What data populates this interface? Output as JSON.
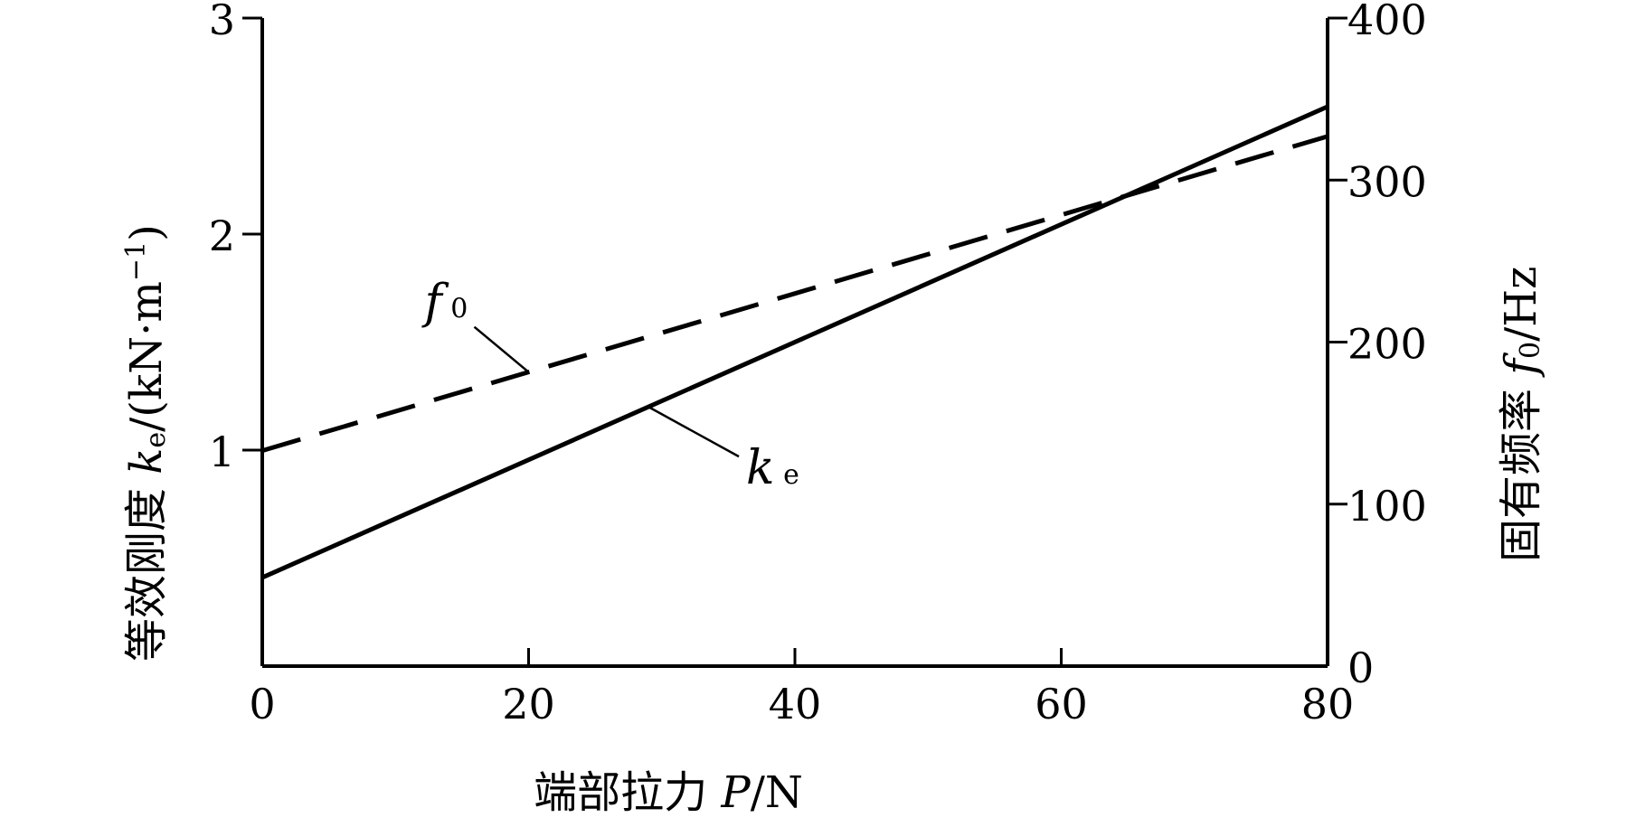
{
  "chart_data": {
    "type": "line",
    "x": [
      0,
      80
    ],
    "xlim": [
      0,
      80
    ],
    "ylim_left": [
      0,
      3
    ],
    "ylim_right": [
      0,
      400
    ],
    "x_ticks": [
      "0",
      "20",
      "40",
      "60",
      "80"
    ],
    "y_left_ticks": [
      "1",
      "2",
      "3"
    ],
    "y_right_ticks": [
      "0",
      "100",
      "200",
      "300",
      "400"
    ],
    "xlabel": "端部拉力 P/N",
    "ylabel_left": "等效刚度 ke/(kN·m⁻¹)",
    "ylabel_right": "固有频率 f0/Hz",
    "xlabel_parts": {
      "cn": "端部拉力",
      "var": "P",
      "unit": "/N"
    },
    "ylabel_left_parts": {
      "cn": "等效刚度",
      "var": "k",
      "sub": "e",
      "unit": "/(kN·m",
      "sup": "−1",
      "close": ")"
    },
    "ylabel_right_parts": {
      "cn": "固有频率",
      "var": "f",
      "sub": "0",
      "unit": "/Hz"
    },
    "grid": false,
    "series": [
      {
        "name": "ke",
        "label_var": "k",
        "label_sub": "e",
        "axis": "left",
        "style": "solid",
        "x": [
          0,
          80
        ],
        "y": [
          0.41,
          2.59
        ]
      },
      {
        "name": "f0",
        "label_var": "f",
        "label_sub": "0",
        "axis": "right",
        "style": "dashed",
        "x": [
          0,
          80
        ],
        "y": [
          133,
          327
        ]
      }
    ],
    "color": "#000000"
  }
}
